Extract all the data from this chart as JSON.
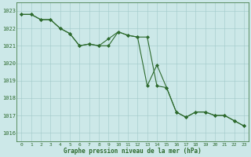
{
  "line1": [
    1022.8,
    1022.8,
    1022.5,
    1022.5,
    1022.0,
    1021.7,
    1021.0,
    1021.1,
    1021.0,
    1021.0,
    1021.8,
    1021.6,
    1021.5,
    1021.5,
    1018.7,
    1018.6,
    1017.2,
    1016.9,
    1017.2,
    1017.2,
    1017.0,
    1017.0,
    1016.7,
    1016.4
  ],
  "line2": [
    1022.8,
    1022.8,
    1022.5,
    1022.5,
    1022.0,
    1021.7,
    1021.0,
    1021.1,
    1021.0,
    1021.4,
    1021.8,
    1021.6,
    1021.5,
    1018.7,
    1019.9,
    1018.6,
    1017.2,
    1016.9,
    1017.2,
    1017.2,
    1017.0,
    1017.0,
    1016.7,
    1016.4
  ],
  "x": [
    0,
    1,
    2,
    3,
    4,
    5,
    6,
    7,
    8,
    9,
    10,
    11,
    12,
    13,
    14,
    15,
    16,
    17,
    18,
    19,
    20,
    21,
    22,
    23
  ],
  "line_color": "#2d6a2d",
  "bg_color": "#cce8e8",
  "grid_color": "#a0c8c8",
  "text_color": "#2d6a2d",
  "xlabel": "Graphe pression niveau de la mer (hPa)",
  "ylim": [
    1015.5,
    1023.5
  ],
  "yticks": [
    1016,
    1017,
    1018,
    1019,
    1020,
    1021,
    1022,
    1023
  ],
  "xticks": [
    0,
    1,
    2,
    3,
    4,
    5,
    6,
    7,
    8,
    9,
    10,
    11,
    12,
    13,
    14,
    15,
    16,
    17,
    18,
    19,
    20,
    21,
    22,
    23
  ],
  "figw": 3.2,
  "figh": 2.0,
  "dpi": 100
}
